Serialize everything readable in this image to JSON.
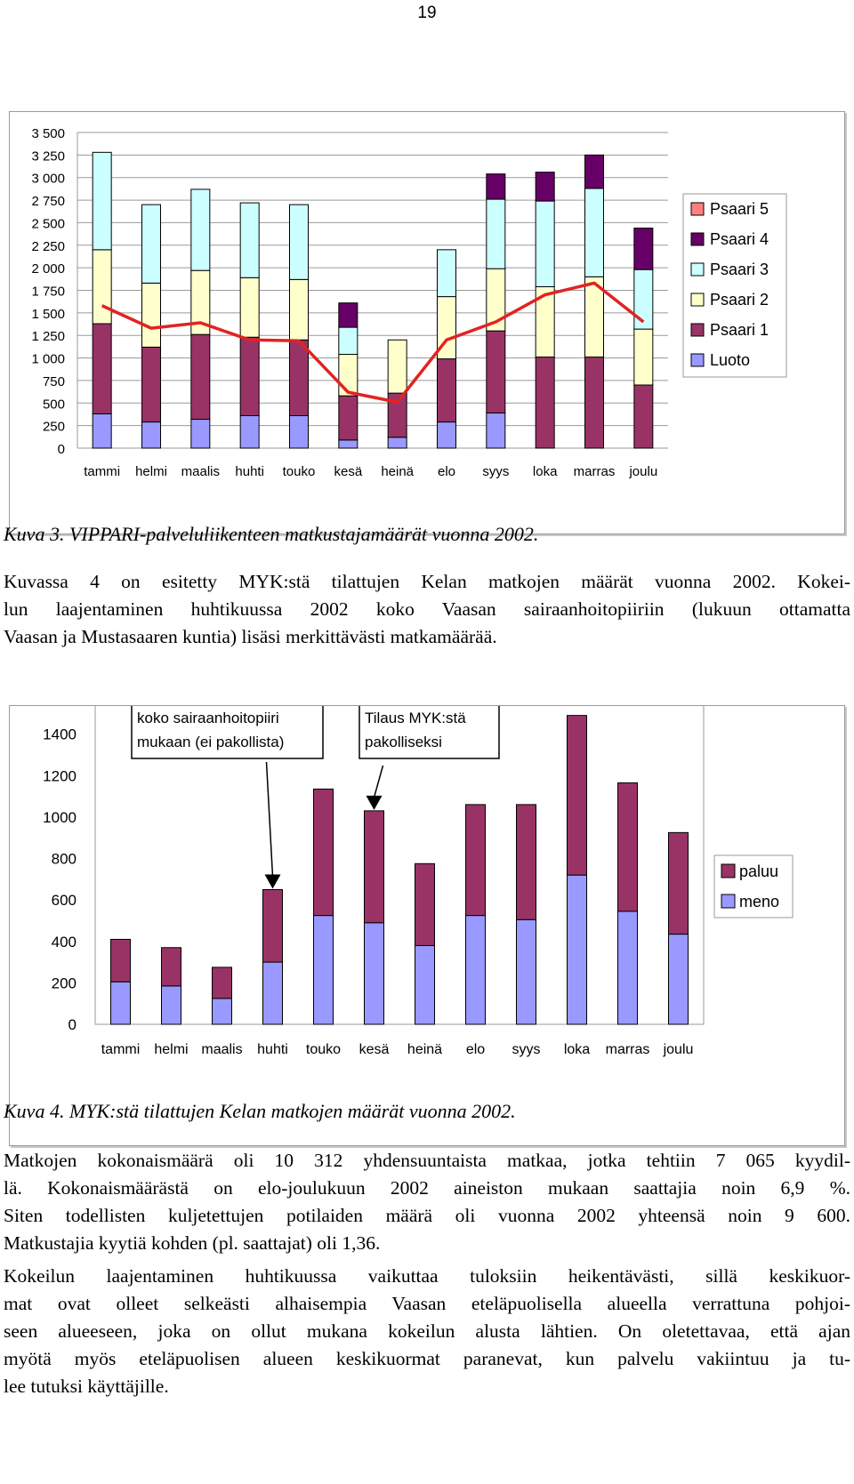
{
  "page_number": "19",
  "chart_data": [
    {
      "type": "bar",
      "stacked": true,
      "categories": [
        "tammi",
        "helmi",
        "maalis",
        "huhti",
        "touko",
        "kesä",
        "heinä",
        "elo",
        "syys",
        "loka",
        "marras",
        "joulu"
      ],
      "series": [
        {
          "name": "Luoto",
          "color": "#9999ff",
          "values": [
            380,
            290,
            320,
            360,
            360,
            90,
            120,
            290,
            390,
            0,
            0,
            0
          ]
        },
        {
          "name": "Psaari 1",
          "color": "#993366",
          "values": [
            1000,
            830,
            940,
            870,
            840,
            490,
            490,
            700,
            910,
            1010,
            1010,
            700
          ]
        },
        {
          "name": "Psaari 2",
          "color": "#ffffcc",
          "values": [
            820,
            710,
            710,
            660,
            670,
            460,
            590,
            690,
            690,
            780,
            890,
            620
          ]
        },
        {
          "name": "Psaari 3",
          "color": "#ccffff",
          "values": [
            1080,
            870,
            900,
            830,
            830,
            300,
            0,
            520,
            770,
            950,
            980,
            660
          ]
        },
        {
          "name": "Psaari 4",
          "color": "#660066",
          "values": [
            0,
            0,
            0,
            0,
            0,
            270,
            0,
            0,
            280,
            320,
            370,
            460
          ]
        },
        {
          "name": "Psaari 5",
          "color": "#ff8080",
          "values": [
            0,
            0,
            0,
            0,
            0,
            0,
            0,
            0,
            0,
            0,
            0,
            0
          ]
        }
      ],
      "line": {
        "color": "#e32222",
        "values": [
          1580,
          1330,
          1390,
          1200,
          1190,
          620,
          510,
          1200,
          1400,
          1700,
          1830,
          1400
        ]
      },
      "ylim": [
        0,
        3500
      ],
      "yticks": [
        "0",
        "250",
        "500",
        "750",
        "1 000",
        "1 250",
        "1 500",
        "1 750",
        "2 000",
        "2 250",
        "2 500",
        "2 750",
        "3 000",
        "3 250",
        "3 500"
      ],
      "grid": true,
      "legend": "right"
    },
    {
      "type": "bar",
      "stacked": true,
      "categories": [
        "tammi",
        "helmi",
        "maalis",
        "huhti",
        "touko",
        "kesä",
        "heinä",
        "elo",
        "syys",
        "loka",
        "marras",
        "joulu"
      ],
      "series": [
        {
          "name": "meno",
          "color": "#9999ff",
          "values": [
            205,
            185,
            125,
            300,
            525,
            490,
            380,
            525,
            505,
            720,
            545,
            435
          ]
        },
        {
          "name": "paluu",
          "color": "#993366",
          "values": [
            205,
            185,
            150,
            350,
            610,
            540,
            395,
            535,
            555,
            770,
            620,
            490
          ]
        }
      ],
      "ylim": [
        0,
        1600
      ],
      "yticks": [
        "0",
        "200",
        "400",
        "600",
        "800",
        "1000",
        "1200",
        "1400",
        "1600"
      ],
      "grid": false,
      "legend": "right",
      "annotations": [
        {
          "text_lines": [
            "koko sairaanhoitopiiri",
            "mukaan (ei pakollista)"
          ],
          "arrow_to": "huhti"
        },
        {
          "text_lines": [
            "Tilaus MYK:stä",
            "pakolliseksi"
          ],
          "arrow_to": "kesä"
        }
      ]
    }
  ],
  "captions": {
    "kuva3": "Kuva 3. VIPPARI-palveluliikenteen matkustajamäärät vuonna 2002.",
    "kuva4": "Kuva 4. MYK:stä tilattujen Kelan matkojen määrät vuonna 2002."
  },
  "paragraphs": {
    "p1": [
      "Kuvassa 4 on esitetty MYK:stä tilattujen Kelan matkojen määrät vuonna 2002. Kokei-",
      "lun laajentaminen huhtikuussa 2002 koko Vaasan sairaanhoitopiiriin (lukuun ottamatta",
      "Vaasan ja Mustasaaren kuntia) lisäsi merkittävästi matkamäärää."
    ],
    "p2": [
      "Matkojen kokonaismäärä oli 10 312 yhdensuuntaista matkaa, jotka tehtiin 7 065 kyydil-",
      "lä. Kokonaismäärästä on elo-joulukuun 2002 aineiston mukaan saattajia noin 6,9 %.",
      "Siten todellisten kuljetettujen potilaiden määrä oli vuonna 2002 yhteensä noin 9 600.",
      "Matkustajia kyytiä kohden (pl. saattajat) oli 1,36."
    ],
    "p3": [
      "Kokeilun laajentaminen huhtikuussa vaikuttaa tuloksiin heikentävästi, sillä keskikuor-",
      "mat ovat olleet selkeästi alhaisempia Vaasan eteläpuolisella alueella verrattuna pohjoi-",
      "seen alueeseen, joka on ollut mukana kokeilun alusta lähtien. On oletettavaa, että ajan",
      "myötä myös eteläpuolisen alueen keskikuormat paranevat, kun palvelu vakiintuu ja tu-",
      "lee tutuksi käyttäjille."
    ]
  }
}
